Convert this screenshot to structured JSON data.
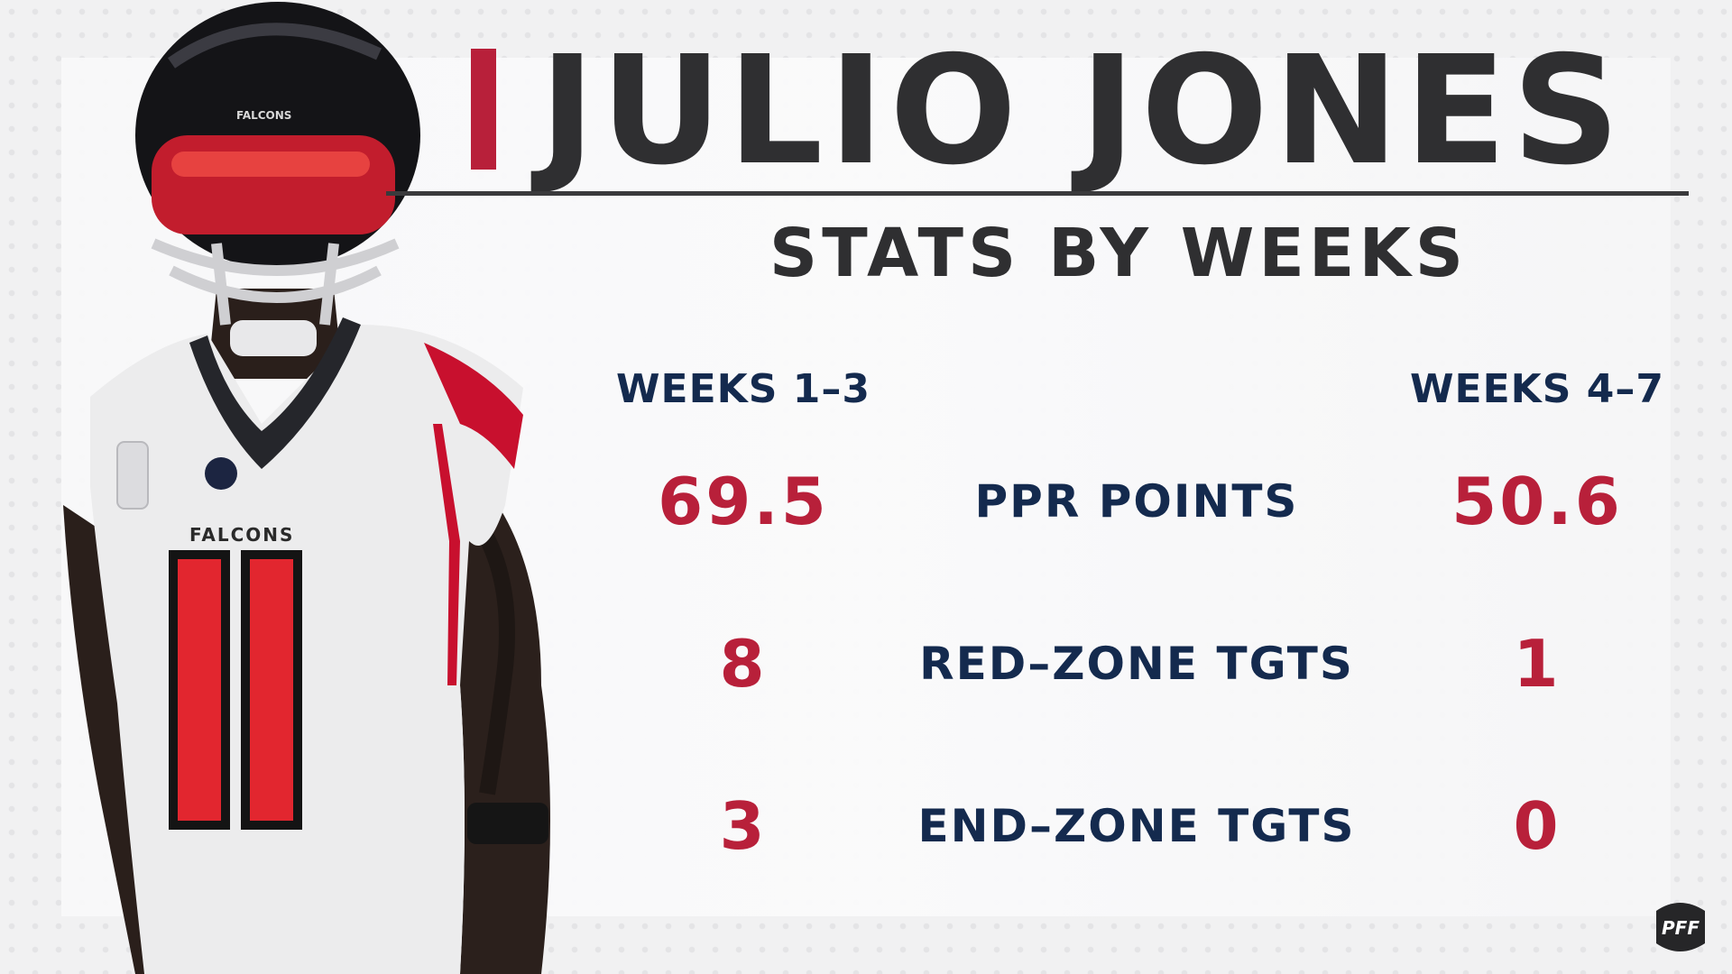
{
  "header": {
    "title": "JULIO JONES",
    "subtitle": "STATS BY WEEKS"
  },
  "columns": {
    "left": "WEEKS 1–3",
    "right": "WEEKS 4–7"
  },
  "stats": [
    {
      "label": "PPR POINTS",
      "left": "69.5",
      "right": "50.6"
    },
    {
      "label": "RED–ZONE TGTS",
      "left": "8",
      "right": "1"
    },
    {
      "label": "END–ZONE TGTS",
      "left": "3",
      "right": "0"
    }
  ],
  "player": {
    "jersey_text": "FALCONS",
    "jersey_number": "11",
    "helmet_text": "FALCONS"
  },
  "branding": {
    "logo_text": "PFF"
  },
  "colors": {
    "accent_red": "#b8203a",
    "navy": "#142a4e",
    "charcoal": "#2f2f31",
    "background": "#f1f1f2"
  }
}
